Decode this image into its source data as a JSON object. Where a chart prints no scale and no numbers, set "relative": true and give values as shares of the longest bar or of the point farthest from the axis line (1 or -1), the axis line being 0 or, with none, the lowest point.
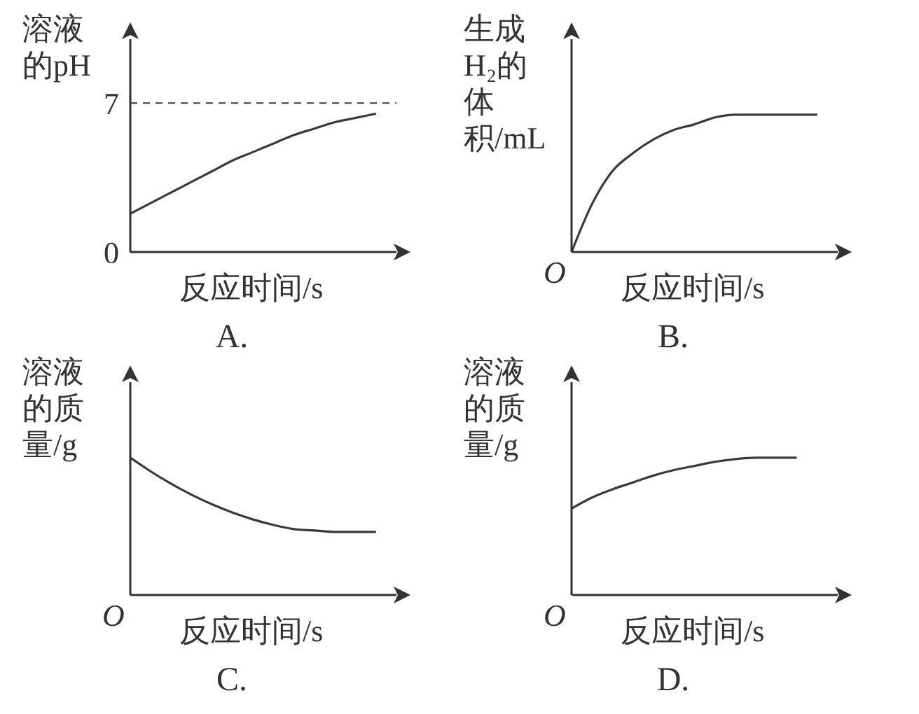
{
  "chart_data": [
    {
      "type": "line",
      "title": "A.",
      "xlabel": "反应时间/s",
      "ylabel": "溶液的pH",
      "categories": [
        null,
        null,
        null,
        null,
        null,
        null,
        null,
        null,
        null,
        null,
        null,
        null,
        null,
        null
      ],
      "values": [
        1.8,
        2.3,
        2.8,
        3.3,
        3.8,
        4.3,
        4.7,
        5.1,
        5.5,
        5.8,
        6.1,
        6.3,
        6.5,
        null
      ],
      "color": "#3a3a3a",
      "ylim": [
        0,
        10
      ],
      "yticks": [
        0,
        7
      ],
      "ref_lines": [
        {
          "axis": "y",
          "value": 7,
          "line_style": "dashed",
          "color": "#3a3a3a"
        }
      ],
      "tick_labels": "y"
    },
    {
      "type": "line",
      "title": "B.",
      "xlabel": "反应时间/s",
      "ylabel": "生成H₂的体积/mL",
      "annotations": [
        "O"
      ],
      "relative": true,
      "categories": [
        null,
        null,
        null,
        null,
        null,
        null,
        null,
        null,
        null,
        null,
        null,
        null,
        null,
        null
      ],
      "values": [
        0,
        0.35,
        0.59,
        0.72,
        0.82,
        0.89,
        0.93,
        0.98,
        1,
        1,
        1,
        1,
        1,
        null
      ],
      "color": "#3a3a3a",
      "tick_labels": false
    },
    {
      "type": "line",
      "title": "C.",
      "xlabel": "反应时间/s",
      "ylabel": "溶液的质量/g",
      "annotations": [
        "O"
      ],
      "relative": true,
      "categories": [
        null,
        null,
        null,
        null,
        null,
        null,
        null,
        null,
        null,
        null,
        null,
        null,
        null,
        null
      ],
      "values": [
        1,
        0.9,
        0.81,
        0.73,
        0.66,
        0.6,
        0.55,
        0.51,
        0.48,
        0.47,
        0.46,
        0.46,
        0.46,
        null
      ],
      "color": "#3a3a3a",
      "tick_labels": false
    },
    {
      "type": "line",
      "title": "D.",
      "xlabel": "反应时间/s",
      "ylabel": "溶液的质量/g",
      "annotations": [
        "O"
      ],
      "relative": true,
      "categories": [
        null,
        null,
        null,
        null,
        null,
        null,
        null,
        null,
        null,
        null,
        null,
        null,
        null,
        null
      ],
      "values": [
        0.63,
        0.71,
        0.77,
        0.82,
        0.87,
        0.91,
        0.94,
        0.97,
        0.99,
        1,
        1,
        1,
        null,
        null
      ],
      "color": "#3a3a3a",
      "tick_labels": false
    }
  ]
}
